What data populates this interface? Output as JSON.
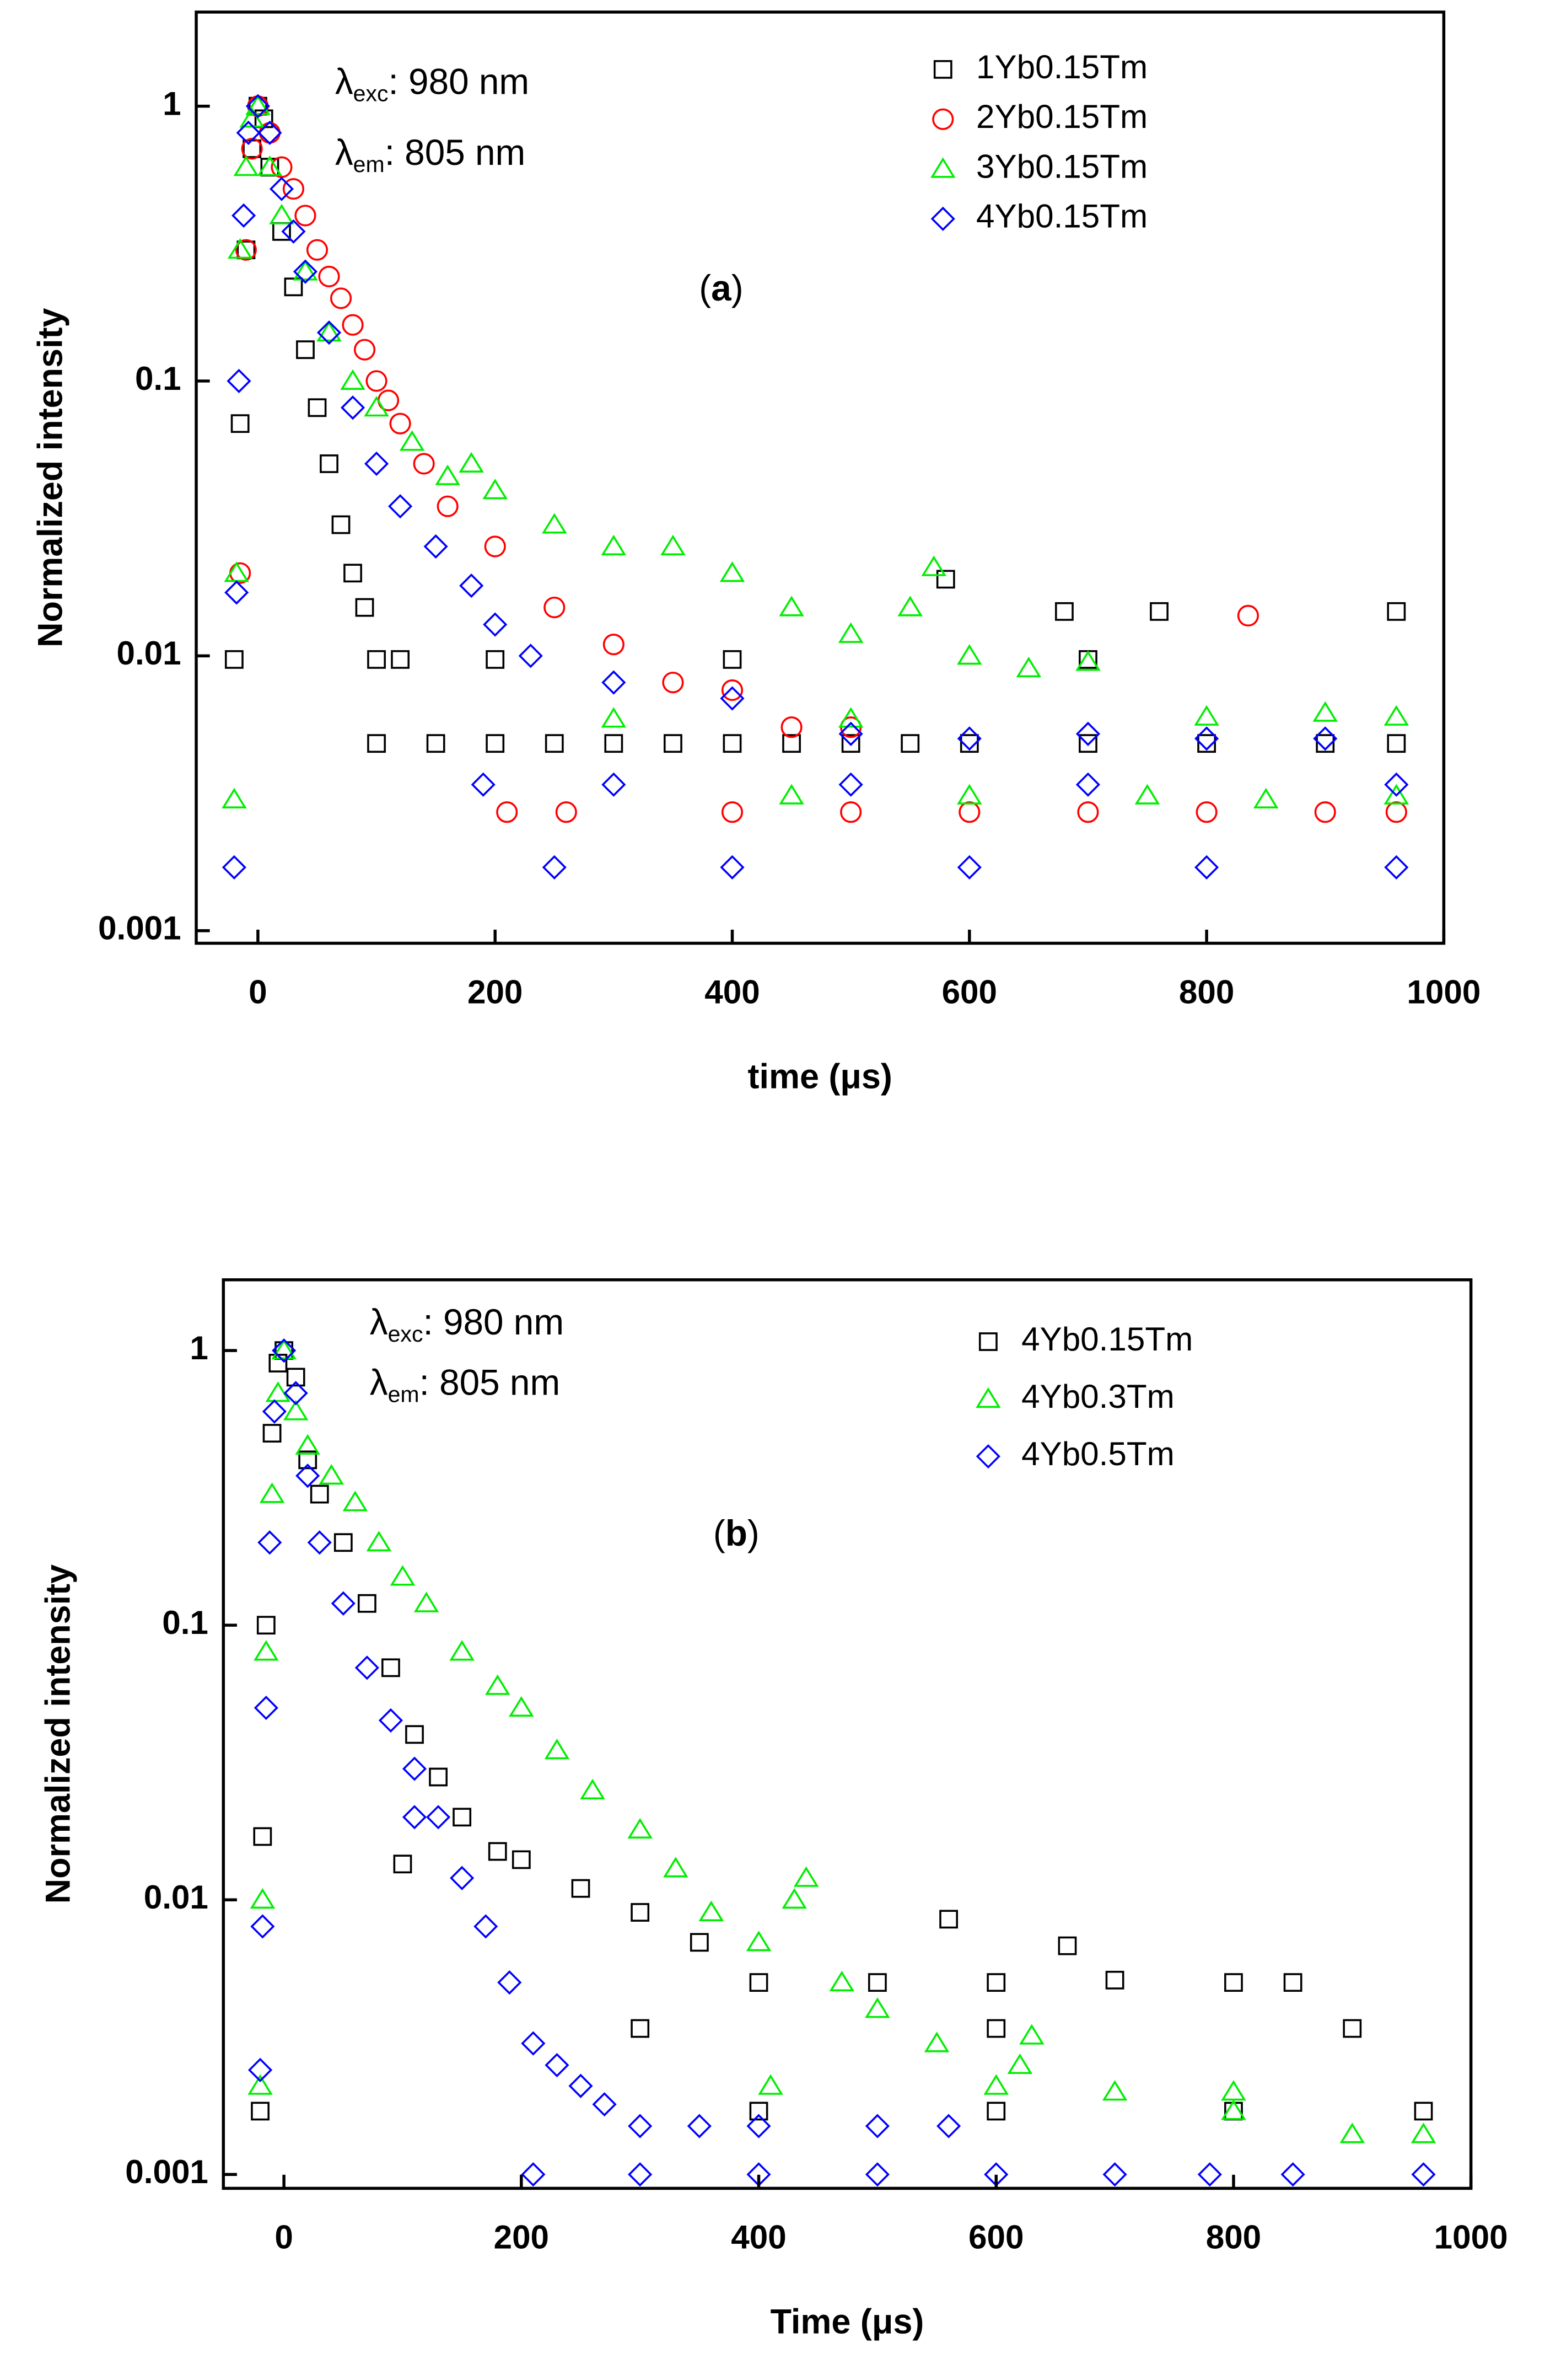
{
  "chart_data": [
    {
      "type": "scatter",
      "log_y": true,
      "annotations": [
        {
          "symbol": "λ",
          "sub": "exc",
          "text": ": 980 nm"
        },
        {
          "symbol": "λ",
          "sub": "em",
          "text": ": 805 nm"
        }
      ],
      "panel_label": [
        "(",
        "a",
        ")"
      ],
      "x_label": "time (μs)",
      "y_label": "Normalized intensity",
      "xlim": [
        -52,
        1000
      ],
      "xticks": [
        0,
        200,
        400,
        600,
        800,
        1000
      ],
      "ylim": [
        0.0009,
        2.2
      ],
      "yticks": [
        1,
        0.1,
        0.01,
        0.001
      ],
      "legend": "top-right",
      "series": [
        {
          "name": "1Yb0.15Tm",
          "color": "#000000",
          "marker": "square",
          "x": [
            -20,
            -15,
            -10,
            -5,
            0,
            5,
            10,
            20,
            30,
            40,
            50,
            60,
            70,
            80,
            90,
            100,
            120,
            150,
            200,
            250,
            300,
            350,
            400,
            450,
            500,
            550,
            600,
            700,
            800,
            900,
            960,
            580,
            680,
            760,
            960,
            400,
            700,
            100,
            200
          ],
          "values": [
            0.0097,
            0.07,
            0.3,
            0.7,
            1,
            0.9,
            0.6,
            0.35,
            0.22,
            0.13,
            0.08,
            0.05,
            0.03,
            0.02,
            0.015,
            0.0097,
            0.0097,
            0.0048,
            0.0048,
            0.0048,
            0.0048,
            0.0048,
            0.0048,
            0.0048,
            0.0048,
            0.0048,
            0.0048,
            0.0048,
            0.0048,
            0.0048,
            0.0048,
            0.019,
            0.0145,
            0.0145,
            0.0145,
            0.0097,
            0.0097,
            0.0048,
            0.0097
          ]
        },
        {
          "name": "2Yb0.15Tm",
          "color": "#ff0000",
          "marker": "circle",
          "x": [
            -15,
            -10,
            -5,
            0,
            10,
            20,
            30,
            40,
            50,
            60,
            70,
            80,
            90,
            100,
            110,
            120,
            140,
            160,
            200,
            250,
            300,
            350,
            400,
            450,
            500,
            600,
            700,
            800,
            835,
            900,
            960,
            260,
            400,
            500,
            210
          ],
          "values": [
            0.02,
            0.3,
            0.7,
            1,
            0.8,
            0.6,
            0.5,
            0.4,
            0.3,
            0.24,
            0.2,
            0.16,
            0.13,
            0.1,
            0.085,
            0.07,
            0.05,
            0.035,
            0.025,
            0.015,
            0.011,
            0.008,
            0.0075,
            0.0055,
            0.0055,
            0.0027,
            0.0027,
            0.0027,
            0.014,
            0.0027,
            0.0027,
            0.0027,
            0.0027,
            0.0027,
            0.0027
          ]
        },
        {
          "name": "3Yb0.15Tm",
          "color": "#00ee00",
          "marker": "triangle",
          "x": [
            -20,
            -18,
            -15,
            -10,
            -5,
            0,
            10,
            20,
            40,
            60,
            80,
            100,
            130,
            160,
            180,
            200,
            250,
            300,
            350,
            400,
            450,
            500,
            550,
            570,
            600,
            650,
            700,
            800,
            900,
            960,
            450,
            600,
            750,
            850,
            960,
            300,
            500
          ],
          "values": [
            0.003,
            0.02,
            0.3,
            0.6,
            0.9,
            1,
            0.6,
            0.4,
            0.25,
            0.15,
            0.1,
            0.08,
            0.06,
            0.045,
            0.05,
            0.04,
            0.03,
            0.025,
            0.025,
            0.02,
            0.015,
            0.012,
            0.015,
            0.021,
            0.01,
            0.009,
            0.0095,
            0.006,
            0.0062,
            0.006,
            0.0031,
            0.0031,
            0.0031,
            0.003,
            0.0031,
            0.0059,
            0.0059
          ]
        },
        {
          "name": "4Yb0.15Tm",
          "color": "#0000ff",
          "marker": "diamond",
          "x": [
            -20,
            -18,
            -16,
            -12,
            -8,
            0,
            10,
            20,
            30,
            40,
            60,
            80,
            100,
            120,
            150,
            180,
            200,
            230,
            300,
            400,
            500,
            600,
            700,
            800,
            900,
            190,
            300,
            500,
            700,
            960,
            250,
            400,
            600,
            800,
            960
          ],
          "values": [
            0.0017,
            0.017,
            0.1,
            0.4,
            0.8,
            1,
            0.8,
            0.5,
            0.35,
            0.25,
            0.15,
            0.08,
            0.05,
            0.035,
            0.025,
            0.018,
            0.013,
            0.01,
            0.008,
            0.007,
            0.0052,
            0.005,
            0.0052,
            0.005,
            0.005,
            0.0034,
            0.0034,
            0.0034,
            0.0034,
            0.0034,
            0.0017,
            0.0017,
            0.0017,
            0.0017,
            0.0017
          ]
        }
      ]
    },
    {
      "type": "scatter",
      "log_y": true,
      "annotations": [
        {
          "symbol": "λ",
          "sub": "exc",
          "text": ": 980 nm"
        },
        {
          "symbol": "λ",
          "sub": "em",
          "text": ": 805 nm"
        }
      ],
      "panel_label": [
        "(",
        "b",
        ")"
      ],
      "x_label": "Time (μs)",
      "y_label": "Normalized intensity",
      "xlim": [
        -51,
        1000
      ],
      "xticks": [
        0,
        200,
        400,
        600,
        800,
        1000
      ],
      "ylim": [
        0.00089,
        1.81
      ],
      "yticks": [
        1,
        0.1,
        0.01,
        0.001
      ],
      "legend": "top-right",
      "series": [
        {
          "name": "4Yb0.15Tm",
          "color": "#000000",
          "marker": "square",
          "x": [
            -20,
            -18,
            -15,
            -10,
            -5,
            0,
            10,
            20,
            30,
            50,
            70,
            90,
            110,
            130,
            150,
            180,
            200,
            250,
            300,
            350,
            400,
            500,
            560,
            600,
            660,
            700,
            800,
            850,
            300,
            600,
            900,
            400,
            600,
            800,
            960,
            100
          ],
          "values": [
            0.0017,
            0.017,
            0.1,
            0.5,
            0.9,
            1,
            0.8,
            0.4,
            0.3,
            0.2,
            0.12,
            0.07,
            0.04,
            0.028,
            0.02,
            0.015,
            0.014,
            0.011,
            0.009,
            0.007,
            0.005,
            0.005,
            0.0085,
            0.005,
            0.0068,
            0.0051,
            0.005,
            0.005,
            0.0034,
            0.0034,
            0.0034,
            0.0017,
            0.0017,
            0.0017,
            0.0017,
            0.0135
          ]
        },
        {
          "name": "4Yb0.3Tm",
          "color": "#00ee00",
          "marker": "triangle",
          "x": [
            -20,
            -18,
            -15,
            -10,
            -5,
            0,
            10,
            20,
            40,
            60,
            80,
            100,
            120,
            150,
            180,
            200,
            230,
            260,
            300,
            330,
            360,
            400,
            430,
            440,
            470,
            500,
            550,
            620,
            700,
            800,
            900,
            960,
            410,
            600,
            800,
            630
          ],
          "values": [
            0.0021,
            0.01,
            0.08,
            0.3,
            0.7,
            1,
            0.6,
            0.45,
            0.35,
            0.28,
            0.2,
            0.15,
            0.12,
            0.08,
            0.06,
            0.05,
            0.035,
            0.025,
            0.018,
            0.013,
            0.009,
            0.007,
            0.01,
            0.012,
            0.005,
            0.004,
            0.003,
            0.0025,
            0.002,
            0.0017,
            0.0014,
            0.0014,
            0.0021,
            0.0021,
            0.002,
            0.0032
          ]
        },
        {
          "name": "4Yb0.5Tm",
          "color": "#0000ff",
          "marker": "diamond",
          "x": [
            -20,
            -18,
            -15,
            -12,
            -8,
            0,
            10,
            20,
            30,
            50,
            70,
            90,
            110,
            130,
            150,
            170,
            190,
            210,
            230,
            250,
            270,
            300,
            350,
            400,
            500,
            560,
            210,
            300,
            400,
            500,
            600,
            700,
            780,
            850,
            960,
            110
          ],
          "values": [
            0.0024,
            0.008,
            0.05,
            0.2,
            0.6,
            1,
            0.7,
            0.35,
            0.2,
            0.12,
            0.07,
            0.045,
            0.03,
            0.02,
            0.012,
            0.008,
            0.005,
            0.003,
            0.0025,
            0.0021,
            0.0018,
            0.0015,
            0.0015,
            0.0015,
            0.0015,
            0.0015,
            0.001,
            0.001,
            0.001,
            0.001,
            0.001,
            0.001,
            0.001,
            0.001,
            0.001,
            0.02
          ]
        }
      ]
    }
  ]
}
